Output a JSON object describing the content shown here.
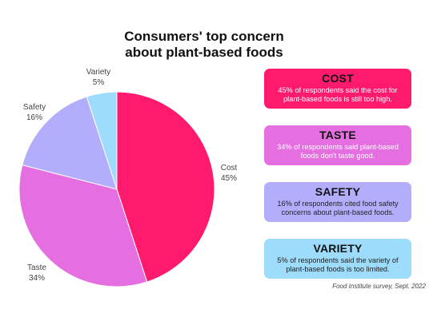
{
  "title": {
    "line1": "Consumers' top concern",
    "line2": "about plant-based foods"
  },
  "chart_data": {
    "type": "pie",
    "title": "Consumers' top concern about plant-based foods",
    "slices": [
      {
        "label": "Cost",
        "value": 45,
        "value_label": "45%",
        "color": "#ff1a6e"
      },
      {
        "label": "Taste",
        "value": 34,
        "value_label": "34%",
        "color": "#e56ee0"
      },
      {
        "label": "Safety",
        "value": 16,
        "value_label": "16%",
        "color": "#b3aefc"
      },
      {
        "label": "Variety",
        "value": 5,
        "value_label": "5%",
        "color": "#9edcfc"
      }
    ]
  },
  "cards": [
    {
      "heading": "COST",
      "text": "45% of respondents said the cost for plant-based foods is still too high.",
      "bg": "#ff1a6e",
      "text_color": "#ffffff"
    },
    {
      "heading": "TASTE",
      "text": "34% of respondents said plant-based foods don't taste good.",
      "bg": "#e56ee0",
      "text_color": "#ffffff"
    },
    {
      "heading": "SAFETY",
      "text": "16% of respondents cited food safety concerns about plant-based foods.",
      "bg": "#b3aefc",
      "text_color": "#222222"
    },
    {
      "heading": "VARIETY",
      "text": "5% of respondents said the variety of plant-based foods is too limited.",
      "bg": "#9edcfc",
      "text_color": "#222222"
    }
  ],
  "source": "Food Institute survey, Sept. 2022"
}
